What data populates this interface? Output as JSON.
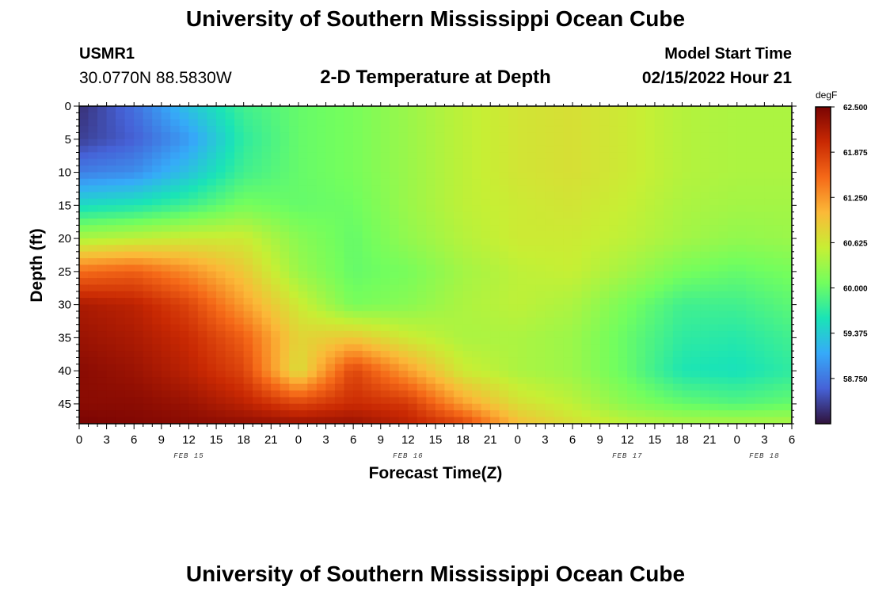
{
  "header": {
    "title": "University of Southern Mississippi Ocean Cube",
    "station_id": "USMR1",
    "coordinates": "30.0770N  88.5830W",
    "model_start_label": "Model Start Time",
    "model_start_value": "02/15/2022 Hour 21"
  },
  "footer": {
    "title": "University of Southern Mississippi Ocean Cube"
  },
  "chart_data": {
    "type": "heatmap",
    "title": "2-D Temperature at Depth",
    "xlabel": "Forecast Time(Z)",
    "ylabel": "Depth (ft)",
    "x_tick_labels": [
      "0",
      "3",
      "6",
      "9",
      "12",
      "15",
      "18",
      "21",
      "0",
      "3",
      "6",
      "9",
      "12",
      "15",
      "18",
      "21",
      "0",
      "3",
      "6",
      "9",
      "12",
      "15",
      "18",
      "21",
      "0",
      "3",
      "6"
    ],
    "x_date_labels": [
      {
        "label": "FEB 15",
        "hour_index": 4
      },
      {
        "label": "FEB 16",
        "hour_index": 12
      },
      {
        "label": "FEB 17",
        "hour_index": 20
      },
      {
        "label": "FEB 18",
        "hour_index": 25
      }
    ],
    "x_range_hours": [
      0,
      78
    ],
    "y_ticks": [
      0,
      5,
      10,
      15,
      20,
      25,
      30,
      35,
      40,
      45
    ],
    "y_range": [
      0,
      48
    ],
    "y_inverted": true,
    "colorbar": {
      "unit": "degF",
      "labels": [
        "62.500",
        "61.875",
        "61.250",
        "60.625",
        "60.000",
        "59.375",
        "58.750"
      ],
      "min": 58.125,
      "max": 62.5,
      "colors": [
        "#30123b",
        "#4662d7",
        "#36aaf9",
        "#1ae4b6",
        "#72fe5e",
        "#c7ef34",
        "#fbb938",
        "#f56918",
        "#c92903",
        "#7a0403"
      ]
    },
    "grid": false,
    "time_hours": [
      0,
      6,
      12,
      18,
      24,
      30,
      36,
      42,
      48,
      54,
      60,
      66,
      72,
      78
    ],
    "depths_ft": [
      0,
      5,
      10,
      15,
      20,
      25,
      30,
      35,
      40,
      45,
      48
    ],
    "temperature_degF": [
      [
        58.3,
        58.7,
        59.3,
        59.8,
        60.0,
        60.1,
        60.3,
        60.5,
        60.65,
        60.7,
        60.6,
        60.45,
        60.4,
        60.4
      ],
      [
        58.4,
        58.6,
        59.0,
        59.7,
        60.0,
        60.1,
        60.3,
        60.5,
        60.65,
        60.7,
        60.6,
        60.45,
        60.4,
        60.4
      ],
      [
        58.8,
        58.9,
        59.3,
        59.8,
        60.0,
        60.1,
        60.3,
        60.5,
        60.65,
        60.7,
        60.6,
        60.45,
        60.4,
        60.4
      ],
      [
        59.5,
        59.6,
        59.8,
        60.1,
        60.0,
        60.05,
        60.3,
        60.5,
        60.6,
        60.65,
        60.55,
        60.4,
        60.35,
        60.35
      ],
      [
        60.4,
        60.5,
        60.6,
        60.6,
        60.2,
        60.0,
        60.25,
        60.45,
        60.6,
        60.6,
        60.5,
        60.35,
        60.25,
        60.3
      ],
      [
        61.5,
        61.6,
        61.3,
        60.9,
        60.3,
        60.0,
        60.1,
        60.35,
        60.5,
        60.55,
        60.35,
        60.1,
        60.0,
        60.1
      ],
      [
        62.2,
        62.1,
        61.8,
        61.2,
        60.6,
        60.1,
        60.2,
        60.4,
        60.5,
        60.4,
        60.1,
        59.8,
        59.8,
        59.95
      ],
      [
        62.3,
        62.2,
        62.0,
        61.6,
        60.8,
        60.9,
        60.6,
        60.4,
        60.4,
        60.3,
        60.0,
        59.7,
        59.65,
        59.8
      ],
      [
        62.4,
        62.3,
        62.1,
        61.8,
        60.7,
        61.8,
        61.2,
        60.6,
        60.4,
        60.3,
        60.0,
        59.6,
        59.55,
        59.7
      ],
      [
        62.4,
        62.4,
        62.3,
        62.1,
        61.8,
        62.0,
        61.9,
        61.2,
        60.7,
        60.5,
        60.2,
        60.0,
        59.9,
        60.0
      ],
      [
        62.5,
        62.45,
        62.4,
        62.35,
        62.3,
        62.3,
        62.1,
        61.8,
        61.0,
        60.7,
        60.5,
        60.4,
        60.4,
        60.4
      ]
    ]
  }
}
